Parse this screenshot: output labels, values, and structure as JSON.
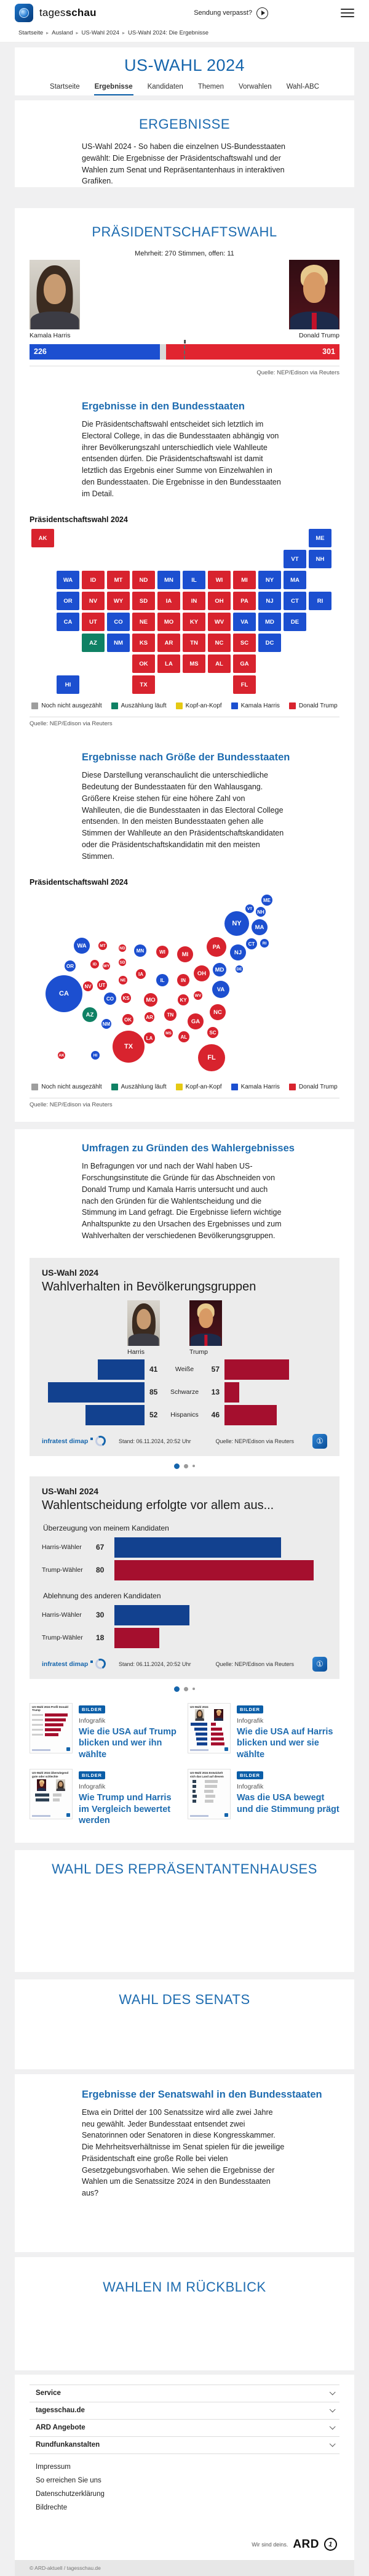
{
  "header": {
    "brand_regular": "tages",
    "brand_bold": "schau",
    "missed_label": "Sendung verpasst?"
  },
  "breadcrumb": [
    "Startseite",
    "Ausland",
    "US-Wahl 2024",
    "US-Wahl 2024: Die Ergebnisse"
  ],
  "hero": {
    "title": "US-WAHL 2024",
    "tabs": [
      {
        "label": "Startseite",
        "active": false
      },
      {
        "label": "Ergebnisse",
        "active": true
      },
      {
        "label": "Kandidaten",
        "active": false
      },
      {
        "label": "Themen",
        "active": false
      },
      {
        "label": "Vorwahlen",
        "active": false
      },
      {
        "label": "Wahl-ABC",
        "active": false
      }
    ]
  },
  "ergebnisse": {
    "heading": "ERGEBNISSE",
    "text": "US-Wahl 2024 - So haben die einzelnen US-Bundesstaaten gewählt: Die Ergebnisse der Präsidentschaftswahl und der Wahlen zum Senat und Repräsentantenhaus in interaktiven Grafiken."
  },
  "praesidentschaft": {
    "heading": "PRÄSIDENTSCHAFTSWAHL",
    "majority_note": "Mehrheit: 270 Stimmen, offen: 11",
    "harris": {
      "name": "Kamala Harris",
      "votes": "226"
    },
    "trump": {
      "name": "Donald Trump",
      "votes": "301"
    },
    "source": "Quelle: NEP/Edison via Reuters",
    "states_section": {
      "heading": "Ergebnisse in den Bundesstaaten",
      "text": "Die Präsidentschaftswahl entscheidet sich letztlich im Electoral College, in das die Bundesstaaten abhängig von ihrer Bevölkerungszahl unterschiedlich viele Wahlleute entsenden dürfen. Die Präsidentschaftswahl ist damit letztlich das Ergebnis einer Summe von Einzelwahlen in den Bundesstaaten. Die Ergebnisse in den Bundesstaaten im Detail.",
      "chart_label": "Präsidentschaftswahl 2024"
    },
    "size_section": {
      "heading": "Ergebnisse nach Größe der Bundesstaaten",
      "text": "Diese Darstellung veranschaulicht die unterschiedliche Bedeutung der Bundesstaaten für den Wahlausgang. Größere Kreise stehen für eine höhere Zahl von Wahlleuten, die die Bundesstaaten in das Electoral College entsenden. In den meisten Bundesstaaten gehen alle Stimmen der Wahlleute an den Präsidentschaftskandidaten oder die Präsidentschaftskandidatin mit den meisten Stimmen.",
      "chart_label": "Präsidentschaftswahl 2024"
    },
    "legend": [
      {
        "label": "Noch nicht ausgezählt",
        "color": "#9e9e9e"
      },
      {
        "label": "Auszählung läuft",
        "color": "#0f8164"
      },
      {
        "label": "Kopf-an-Kopf",
        "color": "#e5c913"
      },
      {
        "label": "Kamala Harris",
        "color": "#1c4fd0"
      },
      {
        "label": "Donald Trump",
        "color": "#d8232e"
      }
    ]
  },
  "umfragen": {
    "heading": "Umfragen zu Gründen des Wahlergebnisses",
    "text": "In Befragungen vor und nach der Wahl haben US-Forschungsinstitute die Gründe für das Abschneiden von Donald Trump und Kamala Harris untersucht und auch nach den Gründen für die Wahlentscheidung und die Stimmung im Land gefragt. Die Ergebnisse liefern wichtige Anhaltspunkte zu den Ursachen des Ergebnisses und zum Wahlverhalten der verschiedenen Bevölkerungsgruppen.",
    "dots": 3
  },
  "infographic1": {
    "kicker": "US-Wahl 2024",
    "title": "Wahlverhalten in Bevölkerungsgruppen",
    "col_left": "Harris",
    "col_right": "Trump",
    "rows": [
      {
        "label": "Weiße",
        "harris": 41,
        "trump": 57
      },
      {
        "label": "Schwarze",
        "harris": 85,
        "trump": 13
      },
      {
        "label": "Hispanics",
        "harris": 52,
        "trump": 46
      }
    ],
    "brand": "infratest dimap",
    "stand": "Stand: 06.11.2024, 20:52 Uhr",
    "source": "Quelle: NEP/Edison via Reuters"
  },
  "infographic2": {
    "kicker": "US-Wahl 2024",
    "title": "Wahlentscheidung erfolgte vor allem aus...",
    "groups": [
      {
        "label": "Überzeugung von meinem Kandidaten",
        "rows": [
          {
            "label": "Harris-Wähler",
            "value": 67,
            "color": "#12418f"
          },
          {
            "label": "Trump-Wähler",
            "value": 80,
            "color": "#a50f2e"
          }
        ]
      },
      {
        "label": "Ablehnung des anderen Kandidaten",
        "rows": [
          {
            "label": "Harris-Wähler",
            "value": 30,
            "color": "#12418f"
          },
          {
            "label": "Trump-Wähler",
            "value": 18,
            "color": "#a50f2e"
          }
        ]
      }
    ],
    "brand": "infratest dimap",
    "stand": "Stand: 06.11.2024, 20:52 Uhr",
    "source": "Quelle: NEP/Edison via Reuters"
  },
  "teasers": [
    {
      "badge": "BILDER",
      "kicker": "Infografik",
      "title": "Wie die USA auf Trump blicken und wer ihn wählte",
      "thumb_title": "US-Wahl 2024 Profil Donald Trump",
      "thumb": "trump-profile",
      "bars": [
        92,
        84,
        76,
        66,
        56
      ]
    },
    {
      "badge": "BILDER",
      "kicker": "Infografik",
      "title": "Wie die USA auf Harris blicken und wer sie wählte",
      "thumb_title": "US-Wahl 2024 Profilvergleich",
      "thumb": "compare",
      "bars_left": [
        70,
        55,
        50,
        48,
        45
      ],
      "bars_right": [
        20,
        48,
        52,
        55,
        58
      ]
    },
    {
      "badge": "BILDER",
      "kicker": "Infografik",
      "title": "Wie Trump und Harris im Vergleich bewertet werden",
      "thumb_title": "US-Wahl 2024 Überwiegend gute oder schlechte Meinung von...",
      "thumb": "rating",
      "bars_left": [
        60,
        58
      ],
      "bars_right": [
        38,
        30
      ]
    },
    {
      "badge": "BILDER",
      "kicker": "Infografik",
      "title": "Was die USA bewegt und die Stimmung prägt",
      "thumb_title": "US-Wahl 2024 Entwickelt sich das Land auf diesem Gebiet in die richtige oder die falsche Richtung?",
      "thumb": "direction",
      "bars_left": [
        16,
        15,
        13,
        18,
        14
      ],
      "bars_right": [
        52,
        50,
        38,
        40,
        36
      ]
    }
  ],
  "house": {
    "heading": "WAHL DES REPRÄSENTANTENHAUSES"
  },
  "senate": {
    "heading": "WAHL DES SENATS"
  },
  "senate_results": {
    "heading": "Ergebnisse der Senatswahl in den Bundesstaaten",
    "text": "Etwa ein Drittel der 100 Senatssitze wird alle zwei Jahre neu gewählt. Jeder Bundesstaat entsendet zwei Senatorinnen oder Senatoren in diese Kongresskammer. Die Mehrheitsverhältnisse im Senat spielen für die jeweilige Präsidentschaft eine große Rolle bei vielen Gesetzgebungsvorhaben. Wie sehen die Ergebnisse der Wahlen um die Senatssitze 2024 in den Bundesstaaten aus?"
  },
  "review": {
    "heading": "WAHLEN IM RÜCKBLICK"
  },
  "footer": {
    "accordion": [
      "Service",
      "tagesschau.de",
      "ARD Angebote",
      "Rundfunkanstalten"
    ],
    "links": [
      "Impressum",
      "So erreichen Sie uns",
      "Datenschutzerklärung",
      "Bildrechte"
    ],
    "tagline": "Wir sind deins.",
    "ard": "ARD",
    "copyright": "© ARD-aktuell / tagesschau.de"
  },
  "chart_data": [
    {
      "type": "bar",
      "title": "Präsidentschaftswahl Electoral College",
      "categories": [
        "Kamala Harris",
        "Donald Trump"
      ],
      "values": [
        226,
        301
      ],
      "total_seats": 538,
      "majority": 270,
      "open": 11,
      "colors": [
        "#1c4fd0",
        "#d8232e"
      ]
    },
    {
      "type": "heatmap",
      "subtype": "state-winner-map",
      "title": "Präsidentschaftswahl 2024 – Ergebnisse in den Bundesstaaten",
      "winner_key": {
        "H": "Kamala Harris",
        "T": "Donald Trump",
        "G": "Auszählung läuft"
      },
      "tiles": [
        {
          "s": "AK",
          "c": 0,
          "r": 0,
          "w": "T"
        },
        {
          "s": "ME",
          "c": 11,
          "r": 0,
          "w": "H"
        },
        {
          "s": "VT",
          "c": 10,
          "r": 1,
          "w": "H"
        },
        {
          "s": "NH",
          "c": 11,
          "r": 1,
          "w": "H"
        },
        {
          "s": "WA",
          "c": 1,
          "r": 2,
          "w": "H"
        },
        {
          "s": "ID",
          "c": 2,
          "r": 2,
          "w": "T"
        },
        {
          "s": "MT",
          "c": 3,
          "r": 2,
          "w": "T"
        },
        {
          "s": "ND",
          "c": 4,
          "r": 2,
          "w": "T"
        },
        {
          "s": "MN",
          "c": 5,
          "r": 2,
          "w": "H"
        },
        {
          "s": "IL",
          "c": 6,
          "r": 2,
          "w": "H"
        },
        {
          "s": "WI",
          "c": 7,
          "r": 2,
          "w": "T"
        },
        {
          "s": "MI",
          "c": 8,
          "r": 2,
          "w": "T"
        },
        {
          "s": "NY",
          "c": 9,
          "r": 2,
          "w": "H"
        },
        {
          "s": "MA",
          "c": 10,
          "r": 2,
          "w": "H"
        },
        {
          "s": "OR",
          "c": 1,
          "r": 3,
          "w": "H"
        },
        {
          "s": "NV",
          "c": 2,
          "r": 3,
          "w": "T"
        },
        {
          "s": "WY",
          "c": 3,
          "r": 3,
          "w": "T"
        },
        {
          "s": "SD",
          "c": 4,
          "r": 3,
          "w": "T"
        },
        {
          "s": "IA",
          "c": 5,
          "r": 3,
          "w": "T"
        },
        {
          "s": "IN",
          "c": 6,
          "r": 3,
          "w": "T"
        },
        {
          "s": "OH",
          "c": 7,
          "r": 3,
          "w": "T"
        },
        {
          "s": "PA",
          "c": 8,
          "r": 3,
          "w": "T"
        },
        {
          "s": "NJ",
          "c": 9,
          "r": 3,
          "w": "H"
        },
        {
          "s": "CT",
          "c": 10,
          "r": 3,
          "w": "H"
        },
        {
          "s": "RI",
          "c": 11,
          "r": 3,
          "w": "H"
        },
        {
          "s": "CA",
          "c": 1,
          "r": 4,
          "w": "H"
        },
        {
          "s": "UT",
          "c": 2,
          "r": 4,
          "w": "T"
        },
        {
          "s": "CO",
          "c": 3,
          "r": 4,
          "w": "H"
        },
        {
          "s": "NE",
          "c": 4,
          "r": 4,
          "w": "T"
        },
        {
          "s": "MO",
          "c": 5,
          "r": 4,
          "w": "T"
        },
        {
          "s": "KY",
          "c": 6,
          "r": 4,
          "w": "T"
        },
        {
          "s": "WV",
          "c": 7,
          "r": 4,
          "w": "T"
        },
        {
          "s": "VA",
          "c": 8,
          "r": 4,
          "w": "H"
        },
        {
          "s": "MD",
          "c": 9,
          "r": 4,
          "w": "H"
        },
        {
          "s": "DE",
          "c": 10,
          "r": 4,
          "w": "H"
        },
        {
          "s": "AZ",
          "c": 2,
          "r": 5,
          "w": "G"
        },
        {
          "s": "NM",
          "c": 3,
          "r": 5,
          "w": "H"
        },
        {
          "s": "KS",
          "c": 4,
          "r": 5,
          "w": "T"
        },
        {
          "s": "AR",
          "c": 5,
          "r": 5,
          "w": "T"
        },
        {
          "s": "TN",
          "c": 6,
          "r": 5,
          "w": "T"
        },
        {
          "s": "NC",
          "c": 7,
          "r": 5,
          "w": "T"
        },
        {
          "s": "SC",
          "c": 8,
          "r": 5,
          "w": "T"
        },
        {
          "s": "DC",
          "c": 9,
          "r": 5,
          "w": "H"
        },
        {
          "s": "OK",
          "c": 4,
          "r": 6,
          "w": "T"
        },
        {
          "s": "LA",
          "c": 5,
          "r": 6,
          "w": "T"
        },
        {
          "s": "MS",
          "c": 6,
          "r": 6,
          "w": "T"
        },
        {
          "s": "AL",
          "c": 7,
          "r": 6,
          "w": "T"
        },
        {
          "s": "GA",
          "c": 8,
          "r": 6,
          "w": "T"
        },
        {
          "s": "HI",
          "c": 1,
          "r": 7,
          "w": "H"
        },
        {
          "s": "TX",
          "c": 4,
          "r": 7,
          "w": "T"
        },
        {
          "s": "FL",
          "c": 8,
          "r": 7,
          "w": "T"
        }
      ]
    },
    {
      "type": "scatter",
      "subtype": "bubble-cartogram",
      "title": "Präsidentschaftswahl 2024 – Ergebnisse nach Größe der Bundesstaaten",
      "bubbles": [
        {
          "s": "ME",
          "x": 386,
          "y": 14,
          "r": 9,
          "w": "H"
        },
        {
          "s": "VT",
          "x": 358,
          "y": 28,
          "r": 7,
          "w": "H"
        },
        {
          "s": "NH",
          "x": 376,
          "y": 33,
          "r": 8,
          "w": "H"
        },
        {
          "s": "NY",
          "x": 337,
          "y": 52,
          "r": 20,
          "w": "H"
        },
        {
          "s": "MA",
          "x": 374,
          "y": 58,
          "r": 13,
          "w": "H"
        },
        {
          "s": "WA",
          "x": 85,
          "y": 88,
          "r": 13,
          "w": "H"
        },
        {
          "s": "MT",
          "x": 119,
          "y": 88,
          "r": 7,
          "w": "T"
        },
        {
          "s": "ND",
          "x": 151,
          "y": 92,
          "r": 6,
          "w": "T"
        },
        {
          "s": "MN",
          "x": 180,
          "y": 96,
          "r": 10,
          "w": "H"
        },
        {
          "s": "WI",
          "x": 216,
          "y": 98,
          "r": 10,
          "w": "T"
        },
        {
          "s": "MI",
          "x": 253,
          "y": 102,
          "r": 13,
          "w": "T"
        },
        {
          "s": "PA",
          "x": 304,
          "y": 90,
          "r": 16,
          "w": "T"
        },
        {
          "s": "NJ",
          "x": 339,
          "y": 99,
          "r": 13,
          "w": "H"
        },
        {
          "s": "CT",
          "x": 361,
          "y": 85,
          "r": 9,
          "w": "H"
        },
        {
          "s": "RI",
          "x": 382,
          "y": 84,
          "r": 7,
          "w": "H"
        },
        {
          "s": "OR",
          "x": 66,
          "y": 121,
          "r": 9,
          "w": "H"
        },
        {
          "s": "ID",
          "x": 106,
          "y": 118,
          "r": 7,
          "w": "T"
        },
        {
          "s": "WY",
          "x": 125,
          "y": 121,
          "r": 6,
          "w": "T"
        },
        {
          "s": "SD",
          "x": 151,
          "y": 115,
          "r": 6,
          "w": "T"
        },
        {
          "s": "IA",
          "x": 181,
          "y": 134,
          "r": 8,
          "w": "T"
        },
        {
          "s": "NE",
          "x": 152,
          "y": 144,
          "r": 7,
          "w": "T"
        },
        {
          "s": "IL",
          "x": 216,
          "y": 144,
          "r": 10,
          "w": "H"
        },
        {
          "s": "IN",
          "x": 250,
          "y": 144,
          "r": 10,
          "w": "T"
        },
        {
          "s": "OH",
          "x": 280,
          "y": 133,
          "r": 13,
          "w": "T"
        },
        {
          "s": "MD",
          "x": 309,
          "y": 127,
          "r": 11,
          "w": "H"
        },
        {
          "s": "DE",
          "x": 341,
          "y": 126,
          "r": 6,
          "w": "H"
        },
        {
          "s": "CA",
          "x": 56,
          "y": 166,
          "r": 30,
          "w": "H"
        },
        {
          "s": "NV",
          "x": 95,
          "y": 154,
          "r": 8,
          "w": "T"
        },
        {
          "s": "UT",
          "x": 118,
          "y": 152,
          "r": 8,
          "w": "T"
        },
        {
          "s": "CO",
          "x": 131,
          "y": 174,
          "r": 10,
          "w": "H"
        },
        {
          "s": "KS",
          "x": 157,
          "y": 173,
          "r": 8,
          "w": "T"
        },
        {
          "s": "MO",
          "x": 197,
          "y": 176,
          "r": 11,
          "w": "T"
        },
        {
          "s": "KY",
          "x": 250,
          "y": 176,
          "r": 9,
          "w": "T"
        },
        {
          "s": "WV",
          "x": 274,
          "y": 169,
          "r": 7,
          "w": "T"
        },
        {
          "s": "VA",
          "x": 311,
          "y": 159,
          "r": 14,
          "w": "H"
        },
        {
          "s": "AZ",
          "x": 98,
          "y": 200,
          "r": 12,
          "w": "G"
        },
        {
          "s": "NM",
          "x": 125,
          "y": 215,
          "r": 8,
          "w": "H"
        },
        {
          "s": "OK",
          "x": 160,
          "y": 208,
          "r": 9,
          "w": "T"
        },
        {
          "s": "AR",
          "x": 195,
          "y": 204,
          "r": 8,
          "w": "T"
        },
        {
          "s": "TN",
          "x": 229,
          "y": 200,
          "r": 10,
          "w": "T"
        },
        {
          "s": "NC",
          "x": 306,
          "y": 196,
          "r": 13,
          "w": "T"
        },
        {
          "s": "GA",
          "x": 270,
          "y": 211,
          "r": 13,
          "w": "T"
        },
        {
          "s": "SC",
          "x": 298,
          "y": 229,
          "r": 9,
          "w": "T"
        },
        {
          "s": "MS",
          "x": 226,
          "y": 230,
          "r": 7,
          "w": "T"
        },
        {
          "s": "AL",
          "x": 251,
          "y": 236,
          "r": 9,
          "w": "T"
        },
        {
          "s": "LA",
          "x": 195,
          "y": 238,
          "r": 9,
          "w": "T"
        },
        {
          "s": "TX",
          "x": 161,
          "y": 252,
          "r": 26,
          "w": "T"
        },
        {
          "s": "AK",
          "x": 52,
          "y": 266,
          "r": 6,
          "w": "T"
        },
        {
          "s": "HI",
          "x": 107,
          "y": 266,
          "r": 7,
          "w": "H"
        },
        {
          "s": "FL",
          "x": 296,
          "y": 270,
          "r": 22,
          "w": "T"
        }
      ]
    },
    {
      "type": "bar",
      "title": "Wahlverhalten in Bevölkerungsgruppen",
      "categories": [
        "Weiße",
        "Schwarze",
        "Hispanics"
      ],
      "series": [
        {
          "name": "Harris",
          "values": [
            41,
            85,
            52
          ]
        },
        {
          "name": "Trump",
          "values": [
            57,
            13,
            46
          ]
        }
      ]
    },
    {
      "type": "bar",
      "title": "Wahlentscheidung erfolgte vor allem aus...",
      "categories": [
        "Überzeugung – Harris-Wähler",
        "Überzeugung – Trump-Wähler",
        "Ablehnung – Harris-Wähler",
        "Ablehnung – Trump-Wähler"
      ],
      "values": [
        67,
        80,
        30,
        18
      ]
    }
  ]
}
